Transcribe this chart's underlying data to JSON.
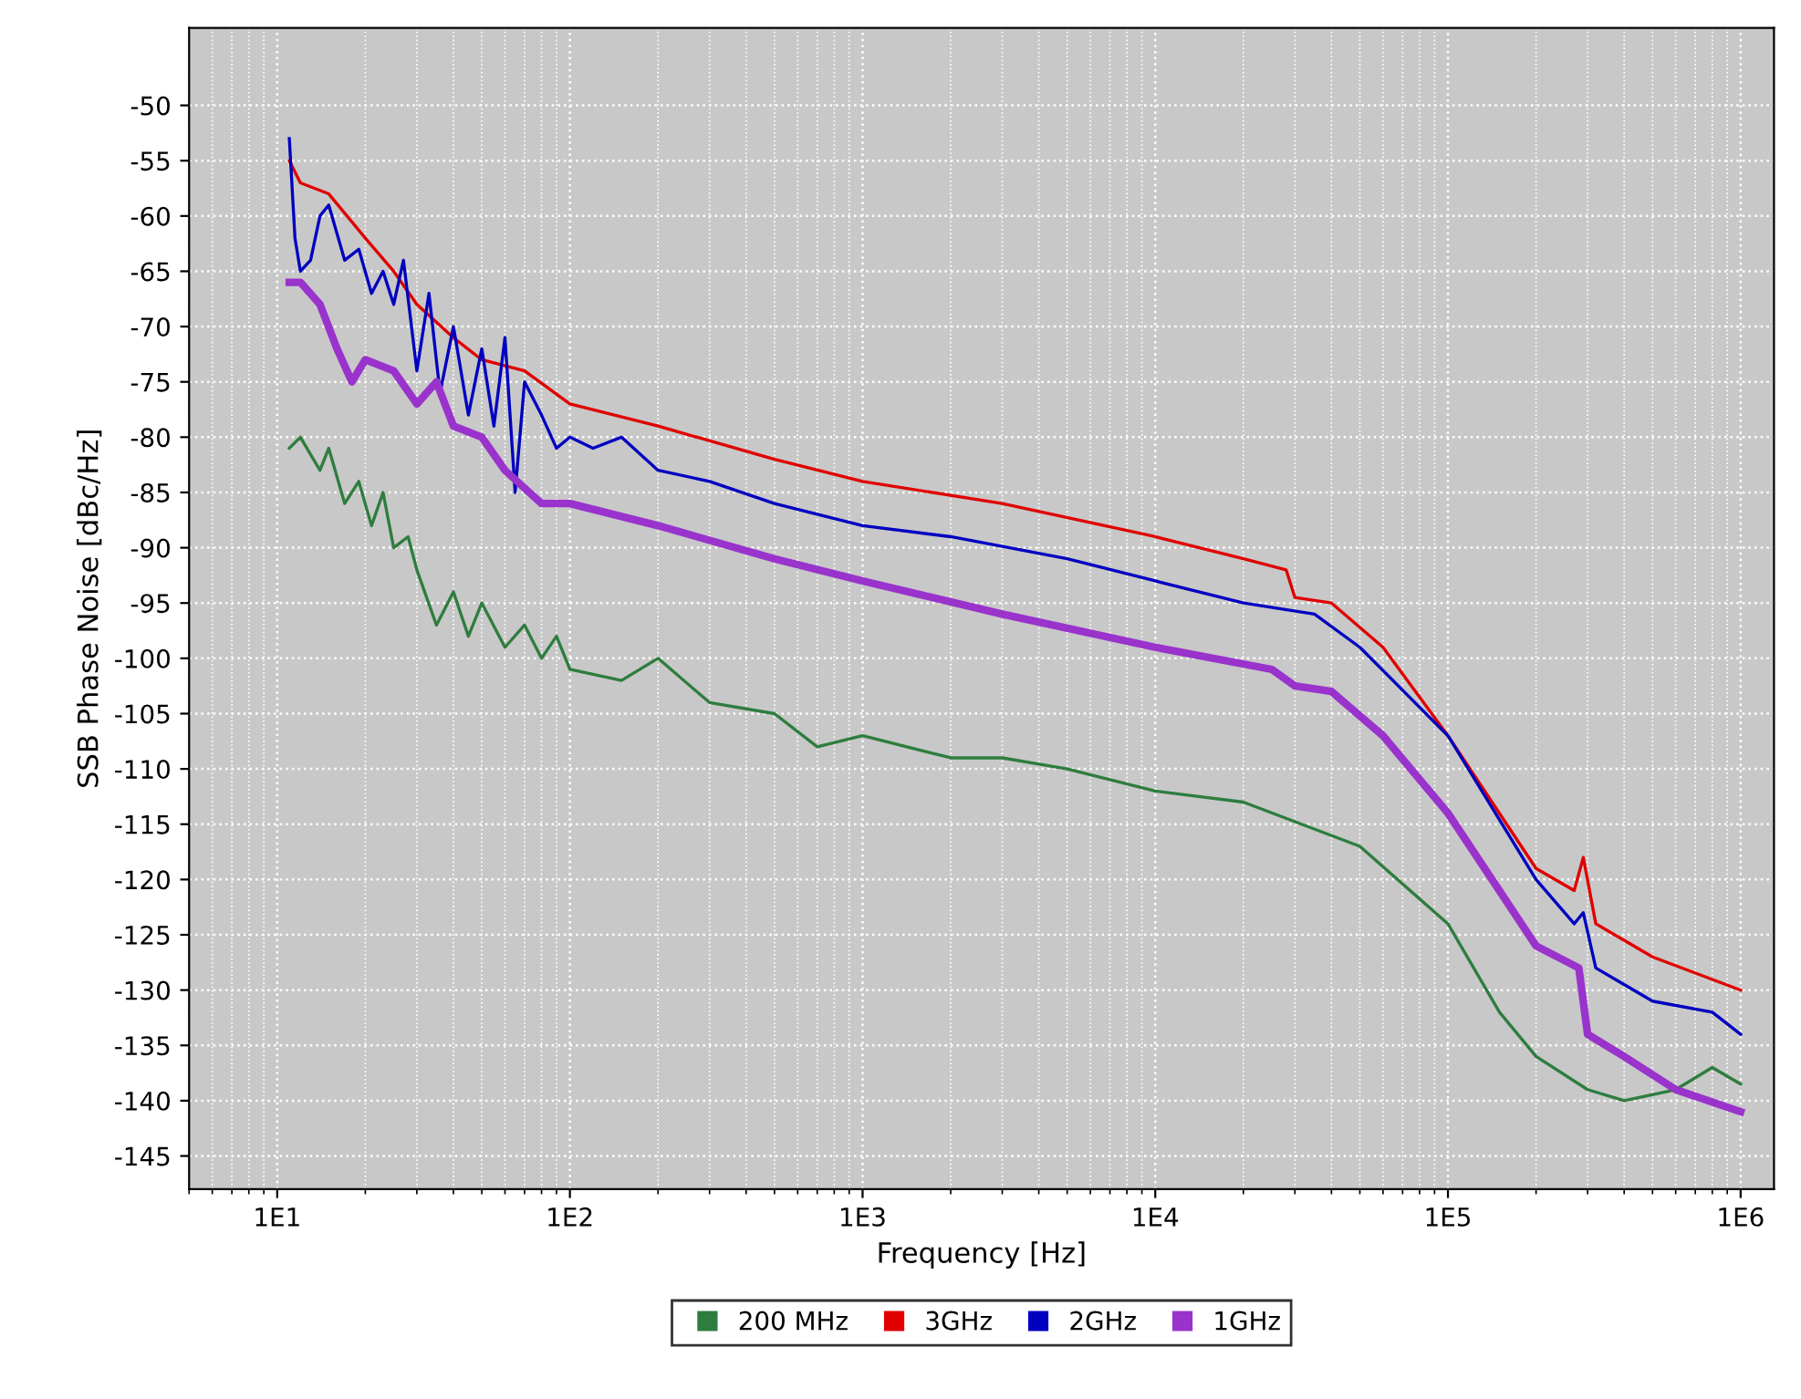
{
  "chart_data": {
    "type": "line",
    "xlabel": "Frequency [Hz]",
    "ylabel": "SSB Phase Noise [dBc/Hz]",
    "log": "x",
    "grid": true,
    "legend": "bottom",
    "marker": "none",
    "line_style": "solid",
    "xlim": [
      5,
      1300000
    ],
    "xticks": [
      {
        "value": 10,
        "label": "1E1"
      },
      {
        "value": 100,
        "label": "1E2"
      },
      {
        "value": 1000,
        "label": "1E3"
      },
      {
        "value": 10000,
        "label": "1E4"
      },
      {
        "value": 100000,
        "label": "1E5"
      },
      {
        "value": 1000000,
        "label": "1E6"
      }
    ],
    "ylim": [
      -148,
      -43
    ],
    "yticks": [
      -50,
      -55,
      -60,
      -65,
      -70,
      -75,
      -80,
      -85,
      -90,
      -95,
      -100,
      -105,
      -110,
      -115,
      -120,
      -125,
      -130,
      -135,
      -140,
      -145
    ],
    "series": [
      {
        "name": "200 MHz",
        "color": "#2e7d3e",
        "x": [
          11,
          12,
          14,
          15,
          17,
          19,
          21,
          23,
          25,
          28,
          30,
          35,
          40,
          45,
          50,
          60,
          70,
          80,
          90,
          100,
          150,
          200,
          300,
          500,
          700,
          1000,
          2000,
          3000,
          5000,
          10000,
          20000,
          50000,
          100000,
          150000,
          200000,
          300000,
          400000,
          600000,
          800000,
          1000000
        ],
        "values": [
          -81,
          -80,
          -83,
          -81,
          -86,
          -84,
          -88,
          -85,
          -90,
          -89,
          -92,
          -97,
          -94,
          -98,
          -95,
          -99,
          -97,
          -100,
          -98,
          -101,
          -102,
          -100,
          -104,
          -105,
          -108,
          -107,
          -109,
          -109,
          -110,
          -112,
          -113,
          -117,
          -124,
          -132,
          -136,
          -139,
          -140,
          -139,
          -137,
          -138.5
        ]
      },
      {
        "name": "3GHz",
        "color": "#e00000",
        "x": [
          11,
          12,
          15,
          20,
          25,
          30,
          40,
          50,
          70,
          100,
          200,
          500,
          1000,
          3000,
          10000,
          20000,
          28000,
          30000,
          40000,
          60000,
          100000,
          200000,
          270000,
          290000,
          320000,
          500000,
          1000000
        ],
        "values": [
          -55,
          -57,
          -58,
          -62,
          -65,
          -68,
          -71,
          -73,
          -74,
          -77,
          -79,
          -82,
          -84,
          -86,
          -89,
          -91,
          -92,
          -94.5,
          -95,
          -99,
          -107,
          -119,
          -121,
          -118,
          -124,
          -127,
          -130
        ]
      },
      {
        "name": "2GHz",
        "color": "#0000c0",
        "x": [
          11,
          11.5,
          12,
          13,
          14,
          15,
          17,
          19,
          21,
          23,
          25,
          27,
          30,
          33,
          36,
          40,
          45,
          50,
          55,
          60,
          65,
          70,
          80,
          90,
          100,
          120,
          150,
          200,
          300,
          500,
          1000,
          2000,
          5000,
          10000,
          20000,
          35000,
          50000,
          100000,
          200000,
          270000,
          290000,
          320000,
          500000,
          800000,
          1000000
        ],
        "values": [
          -53,
          -62,
          -65,
          -64,
          -60,
          -59,
          -64,
          -63,
          -67,
          -65,
          -68,
          -64,
          -74,
          -67,
          -76,
          -70,
          -78,
          -72,
          -79,
          -71,
          -85,
          -75,
          -78,
          -81,
          -80,
          -81,
          -80,
          -83,
          -84,
          -86,
          -88,
          -89,
          -91,
          -93,
          -95,
          -96,
          -99,
          -107,
          -120,
          -124,
          -123,
          -128,
          -131,
          -132,
          -134
        ]
      },
      {
        "name": "1GHz",
        "color": "#9933cc",
        "x": [
          11,
          12,
          14,
          16,
          18,
          20,
          25,
          30,
          35,
          40,
          50,
          60,
          80,
          100,
          200,
          500,
          1000,
          3000,
          10000,
          25000,
          30000,
          40000,
          60000,
          100000,
          200000,
          280000,
          300000,
          400000,
          600000,
          1000000
        ],
        "values": [
          -66,
          -66,
          -68,
          -72,
          -75,
          -73,
          -74,
          -77,
          -75,
          -79,
          -80,
          -83,
          -86,
          -86,
          -88,
          -91,
          -93,
          -96,
          -99,
          -101,
          -102.5,
          -103,
          -107,
          -114,
          -126,
          -128,
          -134,
          -136,
          -139,
          -141
        ]
      }
    ]
  }
}
